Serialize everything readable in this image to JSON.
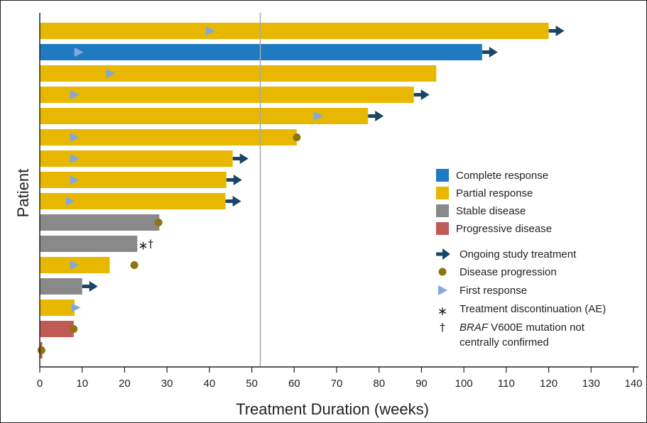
{
  "chart_data": {
    "type": "bar",
    "orientation": "horizontal",
    "title": "",
    "xlabel": "Treatment Duration (weeks)",
    "ylabel": "Patient",
    "xlim": [
      0,
      140
    ],
    "xticks": [
      0,
      10,
      20,
      30,
      40,
      50,
      60,
      70,
      80,
      90,
      100,
      110,
      120,
      130,
      140
    ],
    "reference_line_x": 52,
    "grid": false,
    "legend_position": "right",
    "colors": {
      "complete": "#1F7BC1",
      "partial": "#E8B800",
      "stable": "#898989",
      "progressive": "#C05A55",
      "ongoing_arrow": "#1B4566",
      "progression_dot": "#8C7513",
      "first_response": "#82A9DA",
      "reference_line": "#A8A8A8"
    },
    "legend": {
      "response_types": [
        {
          "key": "complete",
          "label": "Complete response"
        },
        {
          "key": "partial",
          "label": "Partial response"
        },
        {
          "key": "stable",
          "label": "Stable disease"
        },
        {
          "key": "progressive",
          "label": "Progressive disease"
        }
      ],
      "ongoing": "Ongoing study treatment",
      "progression": "Disease progression",
      "first_response": "First response",
      "discontinuation": "Treatment discontinuation (AE)",
      "braf_italic": "BRAF",
      "braf_rest": " V600E mutation not",
      "braf_line2": "centrally confirmed",
      "asterisk_symbol": "∗",
      "dagger_symbol": "†"
    },
    "patients": [
      {
        "duration": 120,
        "response": "partial",
        "ongoing": true,
        "first_response": 40
      },
      {
        "duration": 104.3,
        "response": "complete",
        "ongoing": true,
        "first_response": 9
      },
      {
        "duration": 93.5,
        "response": "partial",
        "ongoing": false,
        "first_response": 16.5
      },
      {
        "duration": 88.2,
        "response": "partial",
        "ongoing": true,
        "first_response": 8
      },
      {
        "duration": 77.4,
        "response": "partial",
        "ongoing": true,
        "first_response": 65.5
      },
      {
        "duration": 60.6,
        "response": "partial",
        "ongoing": false,
        "first_response": 8,
        "progression": 60.6
      },
      {
        "duration": 45.5,
        "response": "partial",
        "ongoing": true,
        "first_response": 8
      },
      {
        "duration": 44,
        "response": "partial",
        "ongoing": true,
        "first_response": 8
      },
      {
        "duration": 43.8,
        "response": "partial",
        "ongoing": true,
        "first_response": 7
      },
      {
        "duration": 28.2,
        "response": "stable",
        "ongoing": false,
        "progression": 28
      },
      {
        "duration": 23,
        "response": "stable",
        "ongoing": false,
        "discontinuation": true,
        "braf_unconfirmed": true
      },
      {
        "duration": 16.5,
        "response": "partial",
        "ongoing": false,
        "first_response": 8,
        "progression": 22.3
      },
      {
        "duration": 10,
        "response": "stable",
        "ongoing": true
      },
      {
        "duration": 8.2,
        "response": "partial",
        "ongoing": false,
        "first_response": 8.3
      },
      {
        "duration": 8,
        "response": "progressive",
        "ongoing": false,
        "progression": 8
      },
      {
        "duration": 0.6,
        "response": "progressive",
        "ongoing": false,
        "progression": 0.4
      }
    ]
  }
}
